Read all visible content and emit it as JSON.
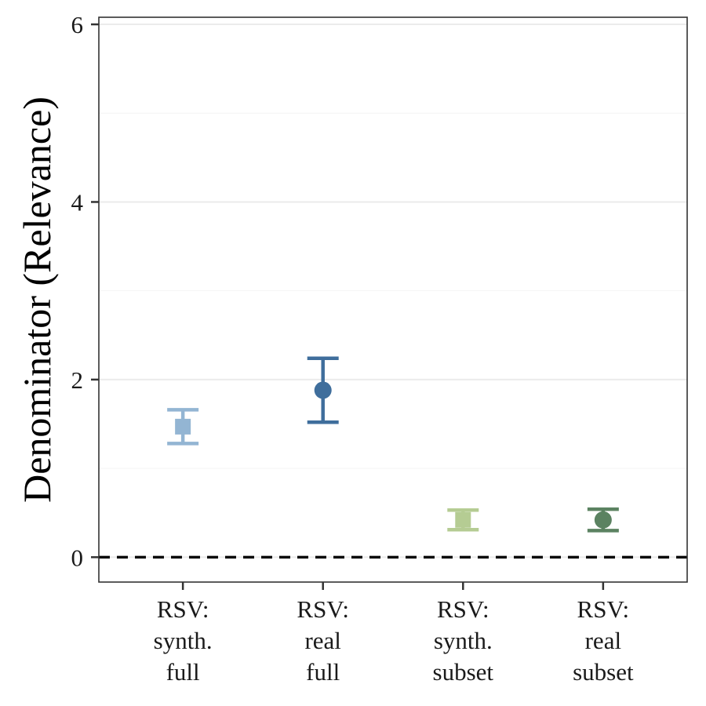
{
  "chart_data": {
    "type": "scatter",
    "ylabel": "Denominator (Relevance)",
    "xlabel": "",
    "ylim": [
      -0.28,
      6.08
    ],
    "y_ticks": [
      "0",
      "2",
      "4",
      "6"
    ],
    "y_tick_values": [
      0,
      2,
      4,
      6
    ],
    "grid": true,
    "reference_line": {
      "y": 0,
      "style": "dashed"
    },
    "categories": [
      [
        "RSV:",
        "synth.",
        "full"
      ],
      [
        "RSV:",
        "real",
        "full"
      ],
      [
        "RSV:",
        "synth.",
        "subset"
      ],
      [
        "RSV:",
        "real",
        "subset"
      ]
    ],
    "series": [
      {
        "category_index": 0,
        "y": 1.47,
        "lower": 1.28,
        "upper": 1.66,
        "marker": "square",
        "color": "#93b5d3"
      },
      {
        "category_index": 1,
        "y": 1.88,
        "lower": 1.52,
        "upper": 2.24,
        "marker": "circle",
        "color": "#3f6e9c"
      },
      {
        "category_index": 2,
        "y": 0.42,
        "lower": 0.31,
        "upper": 0.53,
        "marker": "square",
        "color": "#b5cc93"
      },
      {
        "category_index": 3,
        "y": 0.42,
        "lower": 0.3,
        "upper": 0.54,
        "marker": "circle",
        "color": "#5b8261"
      }
    ]
  }
}
